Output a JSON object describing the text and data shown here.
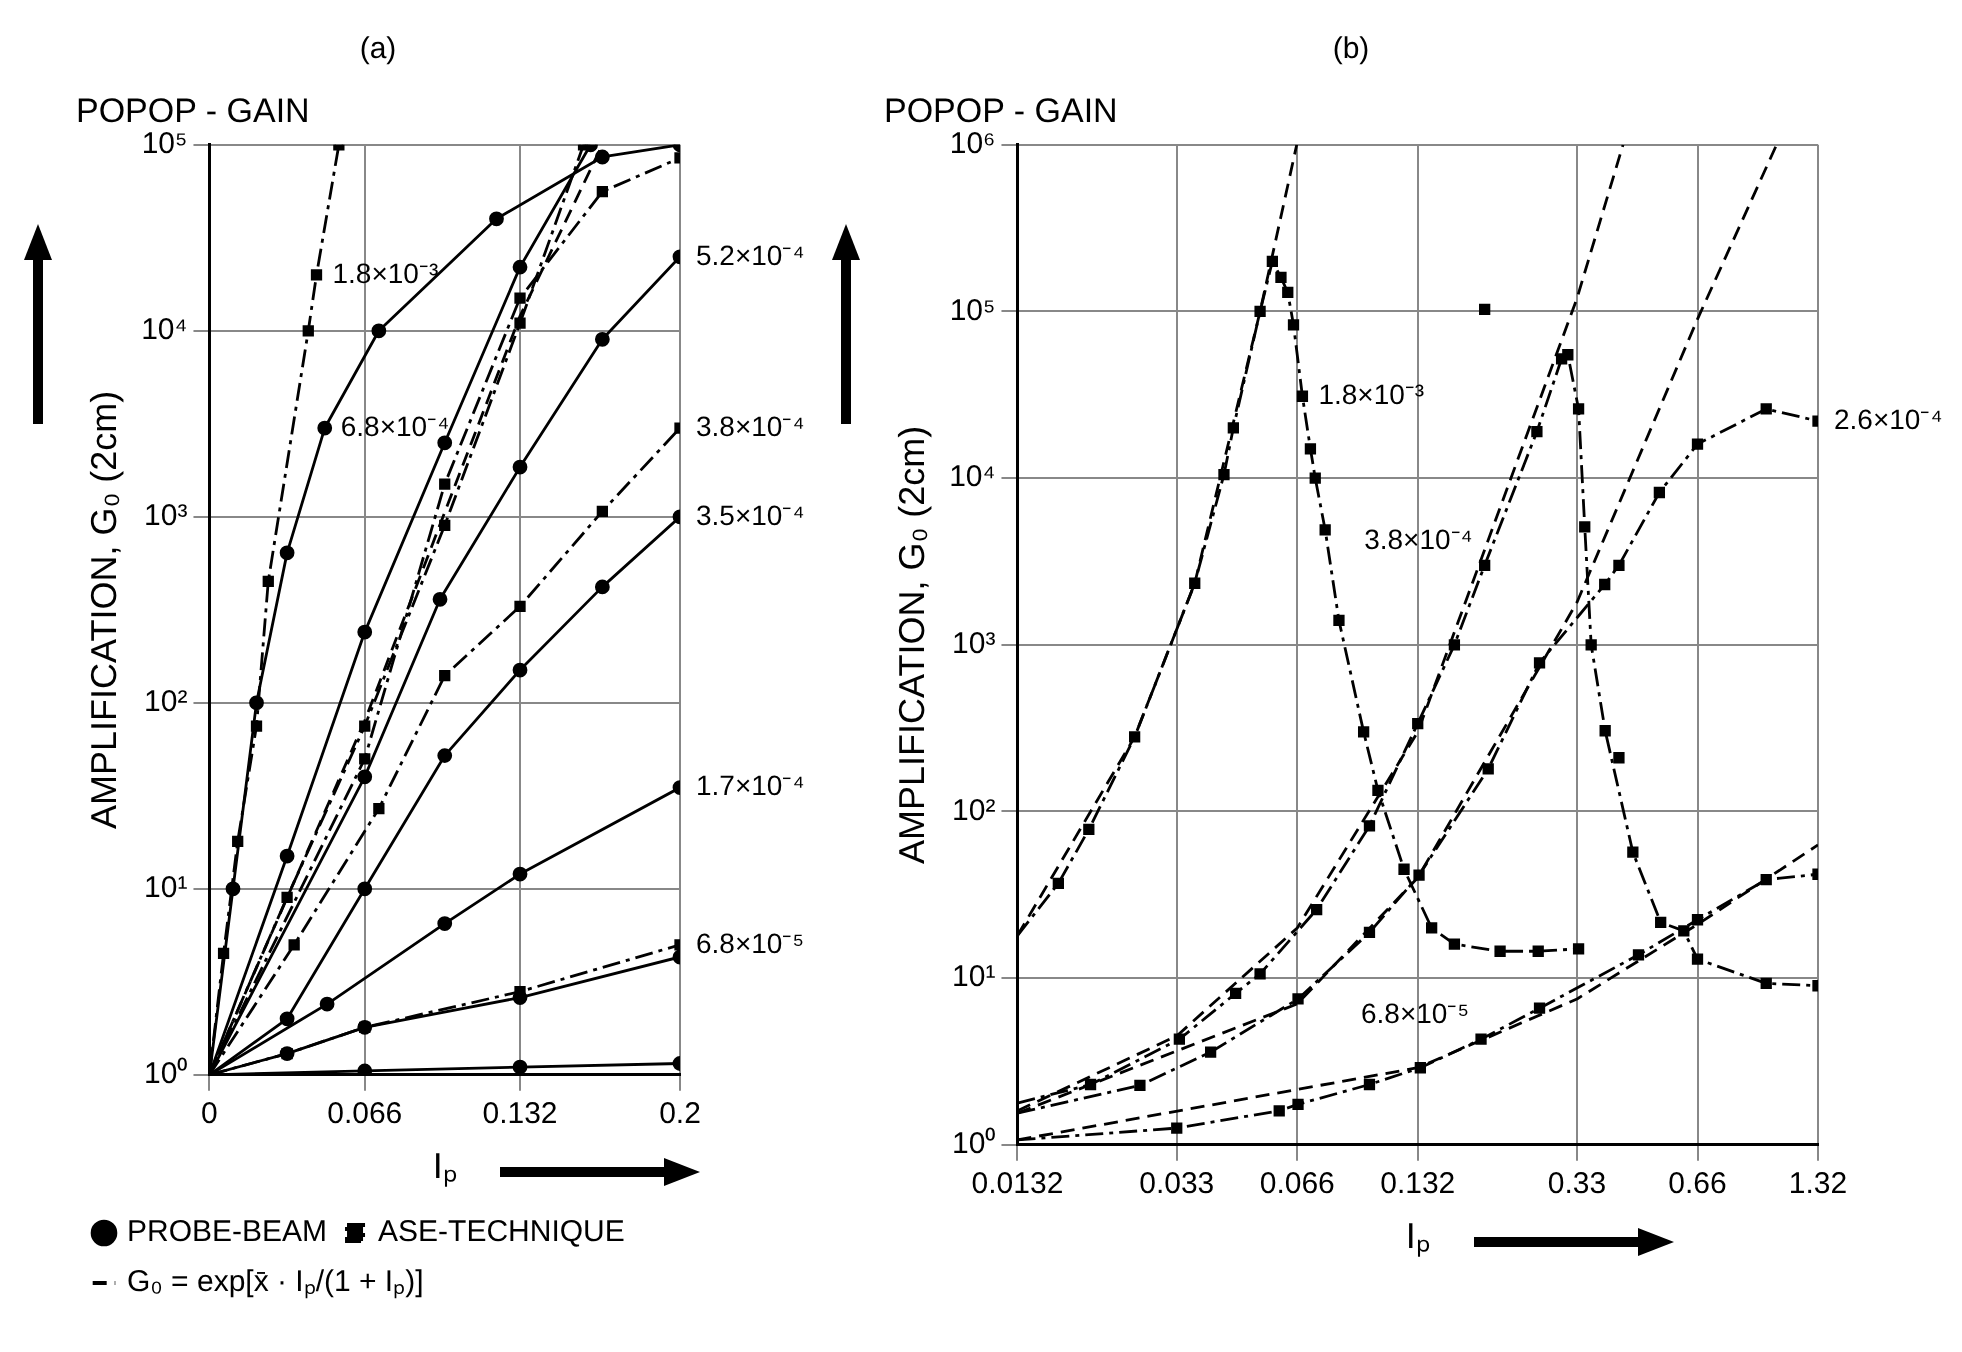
{
  "chart_data": [
    {
      "type": "line",
      "title": "(a)",
      "subtitle": "POPOP - GAIN",
      "xlabel": "Iₚ",
      "ylabel": "AMPLIFICATION, G₀ (2cm)",
      "log": "y",
      "grid": true,
      "legend": "bottom",
      "xlim": [
        0,
        0.2
      ],
      "xticks": [
        0,
        0.066,
        0.132,
        0.2
      ],
      "ylim": [
        1,
        100000
      ],
      "yticks": [
        {
          "value": 1,
          "label": "10⁰"
        },
        {
          "value": 10,
          "label": "10¹"
        },
        {
          "value": 100,
          "label": "10²"
        },
        {
          "value": 1000,
          "label": "10³"
        },
        {
          "value": 10000,
          "label": "10⁴"
        },
        {
          "value": 100000,
          "label": "10⁵"
        }
      ],
      "series": [
        {
          "color": "#000000",
          "line_style": "dashdot",
          "marker": "square",
          "x": [
            0,
            0.006,
            0.012,
            0.02,
            0.025,
            0.042,
            0.0455,
            0.055
          ],
          "values": [
            1,
            4.5,
            18,
            75,
            450,
            10000,
            20000,
            100000
          ]
        },
        {
          "color": "#000000",
          "line_style": "solid",
          "marker": "circle",
          "x": [
            0,
            0.01,
            0.02,
            0.033,
            0.049,
            0.072,
            0.122,
            0.167,
            0.2
          ],
          "values": [
            1,
            10,
            100,
            640,
            3000,
            10000,
            40000,
            86000,
            100000
          ]
        },
        {
          "name": "PROBE-BEAM",
          "color": "#000000",
          "line_style": "solid",
          "marker": "circle",
          "x": [
            0,
            0.033,
            0.066,
            0.1,
            0.132,
            0.162
          ],
          "values": [
            1,
            15,
            240,
            2500,
            22000,
            100000
          ]
        },
        {
          "name": "ASE-TECHNIQUE",
          "color": "#000000",
          "line_style": "dashdot",
          "marker": "square",
          "x": [
            0,
            0.033,
            0.066,
            0.1,
            0.132,
            0.159
          ],
          "values": [
            1,
            9,
            75,
            900,
            11000,
            100000
          ]
        },
        {
          "name": "G₀ = exp[x̄ · Iₚ/(1 + Iₚ)]",
          "color": "#000000",
          "line_style": "dashed",
          "marker": "none",
          "x": [
            0,
            0.066,
            0.132,
            0.167
          ],
          "values": [
            1,
            80,
            12000,
            100000
          ]
        },
        {
          "color": "#000000",
          "line_style": "dashdot",
          "marker": "square",
          "x": [
            0,
            0.066,
            0.1,
            0.132,
            0.167,
            0.2
          ],
          "values": [
            1,
            50,
            1500,
            15000,
            56000,
            85000
          ]
        },
        {
          "color": "#000000",
          "line_style": "solid",
          "marker": "circle",
          "x": [
            0,
            0.066,
            0.098,
            0.132,
            0.167,
            0.2
          ],
          "values": [
            1,
            40,
            360,
            1850,
            9000,
            25000
          ]
        },
        {
          "color": "#000000",
          "line_style": "dashdot",
          "marker": "square",
          "x": [
            0,
            0.036,
            0.072,
            0.1,
            0.132,
            0.167,
            0.2
          ],
          "values": [
            1,
            5,
            27,
            140,
            330,
            1070,
            3000
          ]
        },
        {
          "color": "#000000",
          "line_style": "solid",
          "marker": "circle",
          "x": [
            0,
            0.033,
            0.066,
            0.1,
            0.132,
            0.167,
            0.2
          ],
          "values": [
            1,
            2,
            10,
            52,
            150,
            420,
            1000
          ]
        },
        {
          "color": "#000000",
          "line_style": "solid",
          "marker": "circle",
          "x": [
            0,
            0.05,
            0.1,
            0.132,
            0.2
          ],
          "values": [
            1,
            2.4,
            6.5,
            12,
            35
          ]
        },
        {
          "color": "#000000",
          "line_style": "dashdot",
          "marker": "square",
          "x": [
            0,
            0.033,
            0.066,
            0.132,
            0.2
          ],
          "values": [
            1,
            1.3,
            1.8,
            2.8,
            5
          ]
        },
        {
          "color": "#000000",
          "line_style": "solid",
          "marker": "circle",
          "x": [
            0,
            0.033,
            0.066,
            0.132,
            0.2
          ],
          "values": [
            1,
            1.3,
            1.8,
            2.6,
            4.3
          ]
        },
        {
          "color": "#000000",
          "line_style": "solid",
          "marker": "circle",
          "x": [
            0,
            0.066,
            0.132,
            0.2
          ],
          "values": [
            1,
            1.05,
            1.1,
            1.15
          ]
        }
      ],
      "annotations": [
        {
          "text": "1.8×10⁻³",
          "x": 0.0455,
          "y": 20000
        },
        {
          "text": "6.8×10⁻⁴",
          "x": 0.049,
          "y": 3000
        },
        {
          "text": "5.2×10⁻⁴",
          "x": 0.2,
          "y": 25000
        },
        {
          "text": "3.8×10⁻⁴",
          "x": 0.2,
          "y": 3000
        },
        {
          "text": "3.5×10⁻⁴",
          "x": 0.2,
          "y": 1000
        },
        {
          "text": "1.7×10⁻⁴",
          "x": 0.2,
          "y": 35
        },
        {
          "text": "6.8×10⁻⁵",
          "x": 0.2,
          "y": 5
        }
      ]
    },
    {
      "type": "line",
      "title": "(b)",
      "subtitle": "POPOP - GAIN",
      "xlabel": "Iₚ",
      "ylabel": "AMPLIFICATION, G₀ (2cm)",
      "log": "xy",
      "grid": true,
      "xlim": [
        0.0132,
        1.32
      ],
      "xticks": [
        0.0132,
        0.033,
        0.066,
        0.132,
        0.33,
        0.66,
        1.32
      ],
      "ylim": [
        1,
        1000000
      ],
      "yticks": [
        {
          "value": 1,
          "label": "10⁰"
        },
        {
          "value": 10,
          "label": "10¹"
        },
        {
          "value": 100,
          "label": "10²"
        },
        {
          "value": 1000,
          "label": "10³"
        },
        {
          "value": 10000,
          "label": "10⁴"
        },
        {
          "value": 100000,
          "label": "10⁵"
        },
        {
          "value": 1000000,
          "label": "10⁶"
        }
      ],
      "series": [
        {
          "color": "#000000",
          "line_style": "dashdot",
          "marker": "square",
          "x": [
            0.0132,
            0.0167,
            0.0199,
            0.0259,
            0.0366,
            0.0433,
            0.0457,
            0.0533,
            0.0572,
            0.0601,
            0.0625,
            0.0646,
            0.068,
            0.0712,
            0.0732,
            0.0775,
            0.0839,
            0.0967,
            0.105,
            0.122,
            0.143,
            0.163,
            0.212,
            0.264,
            0.333
          ],
          "values": [
            18,
            37,
            78,
            280,
            2340,
            10500,
            20000,
            100000,
            200000,
            160000,
            130000,
            83000,
            31000,
            15000,
            10000,
            4900,
            1400,
            300,
            134,
            45,
            20,
            16,
            14.5,
            14.5,
            15
          ]
        },
        {
          "color": "#000000",
          "line_style": "dashed",
          "marker": "none",
          "x": [
            0.0132,
            0.0259,
            0.0366,
            0.0533,
            0.0658
          ],
          "values": [
            18,
            280,
            2340,
            100000,
            1000000
          ]
        },
        {
          "color": "#000000",
          "line_style": "dashdot",
          "marker": "square",
          "x": [
            0.0132,
            0.0201,
            0.0335,
            0.0463,
            0.0533,
            0.0738,
            0.1,
            0.132,
            0.163,
            0.194,
            0.262,
            0.302,
            0.313,
            0.333,
            0.345,
            0.358,
            0.388,
            0.455,
            0.534,
            0.61,
            0.66,
            0.98,
            1.32
          ],
          "values": [
            1.78,
            2.3,
            4.3,
            8.1,
            10.6,
            25.8,
            82,
            337,
            1000,
            3000,
            19000,
            52000,
            55000,
            26000,
            5100,
            1000,
            305,
            57,
            21.6,
            19.2,
            13,
            9.3,
            9
          ]
        },
        {
          "type": "scatter",
          "color": "#000000",
          "marker": "square",
          "x": [
            0.194,
            0.42
          ],
          "values": [
            103000,
            210
          ]
        },
        {
          "color": "#000000",
          "line_style": "dashed",
          "marker": "none",
          "x": [
            0.0132,
            0.033,
            0.066,
            0.132,
            0.33,
            0.43
          ],
          "values": [
            1.6,
            4.5,
            20,
            300,
            120000,
            1000000
          ]
        },
        {
          "color": "#000000",
          "line_style": "dashdot",
          "marker": "square",
          "x": [
            0.0132,
            0.0267,
            0.0401,
            0.0663,
            0.1,
            0.133,
            0.198,
            0.266,
            0.387,
            0.42,
            0.53,
            0.66,
            0.98,
            1.32
          ],
          "values": [
            1.55,
            2.27,
            3.6,
            7.5,
            18.8,
            41.5,
            180,
            780,
            2300,
            3000,
            8200,
            16000,
            26000,
            22000
          ]
        },
        {
          "color": "#000000",
          "line_style": "dashed",
          "marker": "none",
          "x": [
            0.0132,
            0.066,
            0.132,
            0.33,
            0.66,
            1.04
          ],
          "values": [
            1.55,
            7,
            40,
            1800,
            90000,
            1000000
          ]
        },
        {
          "color": "#000000",
          "line_style": "dashdot",
          "marker": "square",
          "x": [
            0.0132,
            0.033,
            0.0595,
            0.0663,
            0.1,
            0.134,
            0.19,
            0.266,
            0.47,
            0.66,
            0.98,
            1.32
          ],
          "values": [
            1.07,
            1.26,
            1.6,
            1.75,
            2.3,
            2.9,
            4.3,
            6.6,
            13.8,
            22.4,
            39,
            42
          ]
        },
        {
          "color": "#000000",
          "line_style": "dashed",
          "marker": "none",
          "x": [
            0.0132,
            0.132,
            0.33,
            0.66,
            1.32
          ],
          "values": [
            1.07,
            2.9,
            7.5,
            21,
            63
          ]
        }
      ],
      "annotations": [
        {
          "text": "1.8×10⁻³",
          "x": 0.068,
          "y": 31000
        },
        {
          "text": "3.8×10⁻⁴",
          "x": 0.194,
          "y": 3000
        },
        {
          "text": "2.6×10⁻⁴",
          "x": 1.32,
          "y": 22000
        },
        {
          "text": "6.8×10⁻⁵",
          "x": 0.19,
          "y": 4.3
        }
      ]
    }
  ]
}
